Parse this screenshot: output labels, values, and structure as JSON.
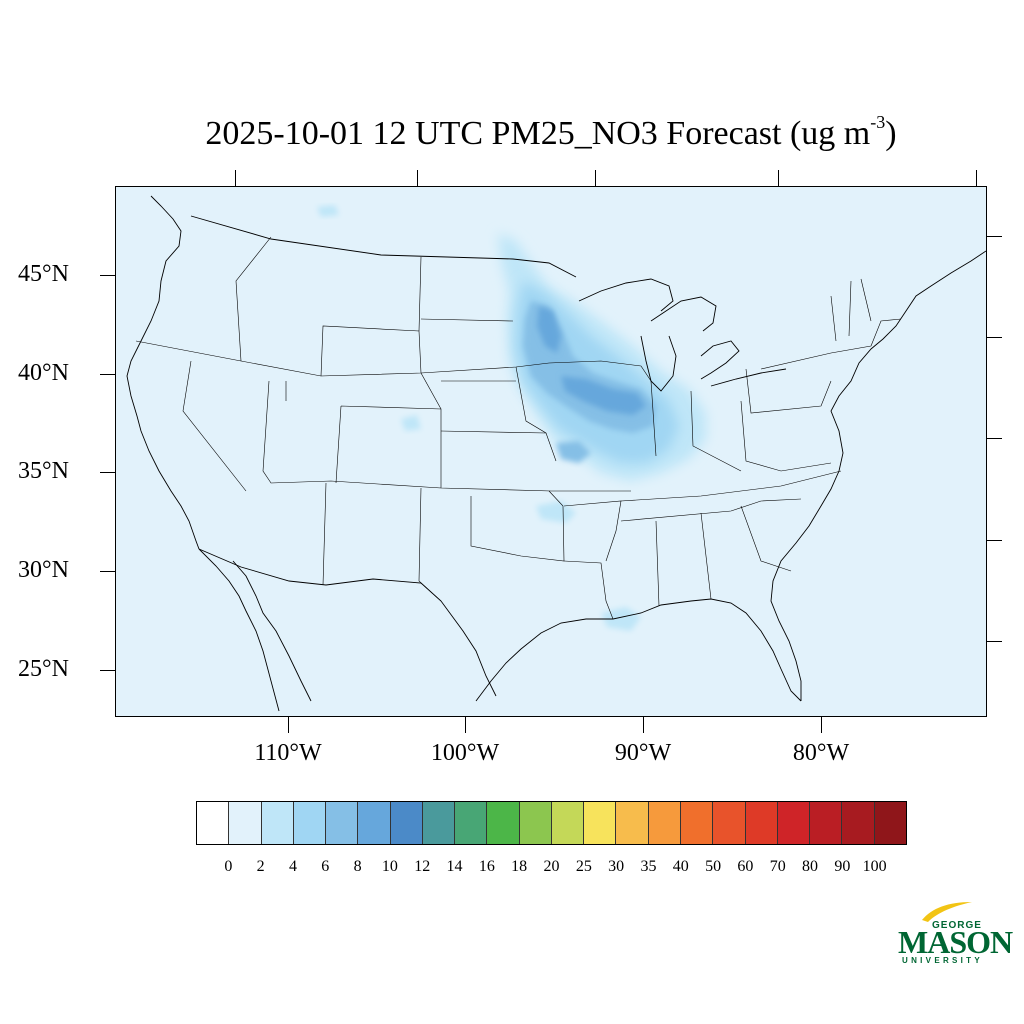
{
  "title": {
    "main": "2025-10-01 12 UTC PM25_NO3 Forecast (ug m",
    "superscript": "-3",
    "close": ")"
  },
  "map": {
    "latitude_labels": [
      "45°N",
      "40°N",
      "35°N",
      "30°N",
      "25°N"
    ],
    "longitude_labels": [
      "110°W",
      "100°W",
      "90°W",
      "80°W"
    ],
    "background_color": "#e2f2fb",
    "boundary_color": "#000000"
  },
  "colorbar": {
    "colors": [
      "#ffffff",
      "#e2f2fb",
      "#bfe6f8",
      "#a0d6f3",
      "#85bfe6",
      "#66a7dc",
      "#4b8ac8",
      "#4a9a9c",
      "#48a675",
      "#4cb648",
      "#8cc64f",
      "#c4d858",
      "#f7e35c",
      "#f7bc4c",
      "#f69a3c",
      "#f06f2c",
      "#e8532b",
      "#de3a27",
      "#cf2428",
      "#ba1e24",
      "#a71b20",
      "#8f161a"
    ],
    "labels": [
      "0",
      "2",
      "4",
      "6",
      "8",
      "10",
      "12",
      "14",
      "16",
      "18",
      "20",
      "25",
      "30",
      "35",
      "40",
      "50",
      "60",
      "70",
      "80",
      "90",
      "100"
    ]
  },
  "logo": {
    "line1": "GEORGE",
    "line2": "MASON",
    "line3": "UNIVERSITY",
    "color": "#006633",
    "accent": "#f2c414"
  }
}
